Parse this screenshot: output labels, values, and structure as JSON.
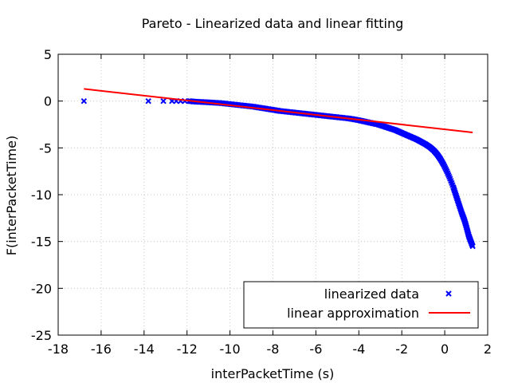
{
  "chart_data": {
    "type": "scatter",
    "title": "Pareto - Linearized data and linear fitting",
    "xlabel": "interPacketTime (s)",
    "ylabel": "F(interPacketTime)",
    "xlim": [
      -18,
      2
    ],
    "ylim": [
      -25,
      5
    ],
    "xticks": [
      -18,
      -16,
      -14,
      -12,
      -10,
      -8,
      -6,
      -4,
      -2,
      0,
      2
    ],
    "yticks": [
      -25,
      -20,
      -15,
      -10,
      -5,
      0,
      5
    ],
    "grid": true,
    "legend_position": "bottom-right",
    "series": [
      {
        "name": "linearized data",
        "kind": "scatter",
        "marker": "x",
        "color": "#0000ff",
        "points": [
          [
            -16.8,
            0.0
          ],
          [
            -13.8,
            0.0
          ],
          [
            -13.1,
            0.0
          ],
          [
            -12.7,
            0.0
          ],
          [
            -12.5,
            0.0
          ],
          [
            -12.3,
            0.0
          ],
          [
            -12.1,
            0.0
          ],
          [
            -11.9,
            0.0
          ],
          [
            -11.7,
            -0.05
          ],
          [
            -11.5,
            -0.08
          ],
          [
            -11.3,
            -0.1
          ],
          [
            -11.1,
            -0.12
          ],
          [
            -10.9,
            -0.15
          ],
          [
            -10.7,
            -0.18
          ],
          [
            -10.5,
            -0.2
          ],
          [
            -10.3,
            -0.25
          ],
          [
            -10.1,
            -0.3
          ],
          [
            -9.9,
            -0.35
          ],
          [
            -9.7,
            -0.4
          ],
          [
            -9.5,
            -0.45
          ],
          [
            -9.3,
            -0.5
          ],
          [
            -9.1,
            -0.55
          ],
          [
            -8.9,
            -0.6
          ],
          [
            -8.7,
            -0.68
          ],
          [
            -8.5,
            -0.75
          ],
          [
            -8.3,
            -0.82
          ],
          [
            -8.1,
            -0.9
          ],
          [
            -7.9,
            -0.97
          ],
          [
            -7.7,
            -1.05
          ],
          [
            -7.5,
            -1.1
          ],
          [
            -7.3,
            -1.15
          ],
          [
            -7.1,
            -1.2
          ],
          [
            -6.9,
            -1.25
          ],
          [
            -6.7,
            -1.3
          ],
          [
            -6.5,
            -1.35
          ],
          [
            -6.3,
            -1.4
          ],
          [
            -6.1,
            -1.45
          ],
          [
            -5.9,
            -1.5
          ],
          [
            -5.7,
            -1.55
          ],
          [
            -5.5,
            -1.6
          ],
          [
            -5.3,
            -1.65
          ],
          [
            -5.1,
            -1.7
          ],
          [
            -4.9,
            -1.75
          ],
          [
            -4.7,
            -1.8
          ],
          [
            -4.5,
            -1.85
          ],
          [
            -4.3,
            -1.92
          ],
          [
            -4.1,
            -2.0
          ],
          [
            -3.9,
            -2.1
          ],
          [
            -3.7,
            -2.2
          ],
          [
            -3.5,
            -2.3
          ],
          [
            -3.3,
            -2.4
          ],
          [
            -3.1,
            -2.5
          ],
          [
            -2.9,
            -2.65
          ],
          [
            -2.7,
            -2.8
          ],
          [
            -2.5,
            -2.95
          ],
          [
            -2.3,
            -3.1
          ],
          [
            -2.1,
            -3.3
          ],
          [
            -1.9,
            -3.5
          ],
          [
            -1.7,
            -3.7
          ],
          [
            -1.5,
            -3.9
          ],
          [
            -1.3,
            -4.1
          ],
          [
            -1.1,
            -4.35
          ],
          [
            -0.9,
            -4.6
          ],
          [
            -0.7,
            -4.9
          ],
          [
            -0.5,
            -5.3
          ],
          [
            -0.35,
            -5.7
          ],
          [
            -0.2,
            -6.2
          ],
          [
            -0.05,
            -6.8
          ],
          [
            0.1,
            -7.5
          ],
          [
            0.25,
            -8.3
          ],
          [
            0.4,
            -9.2
          ],
          [
            0.5,
            -9.9
          ],
          [
            0.6,
            -10.6
          ],
          [
            0.7,
            -11.3
          ],
          [
            0.8,
            -12.0
          ],
          [
            0.9,
            -12.6
          ],
          [
            0.98,
            -13.2
          ],
          [
            1.05,
            -13.8
          ],
          [
            1.12,
            -14.4
          ],
          [
            1.2,
            -14.9
          ],
          [
            1.3,
            -15.5
          ]
        ]
      },
      {
        "name": "linear approximation",
        "kind": "line",
        "color": "#ff0000",
        "points": [
          [
            -16.8,
            1.3
          ],
          [
            1.3,
            -3.35
          ]
        ]
      }
    ]
  }
}
